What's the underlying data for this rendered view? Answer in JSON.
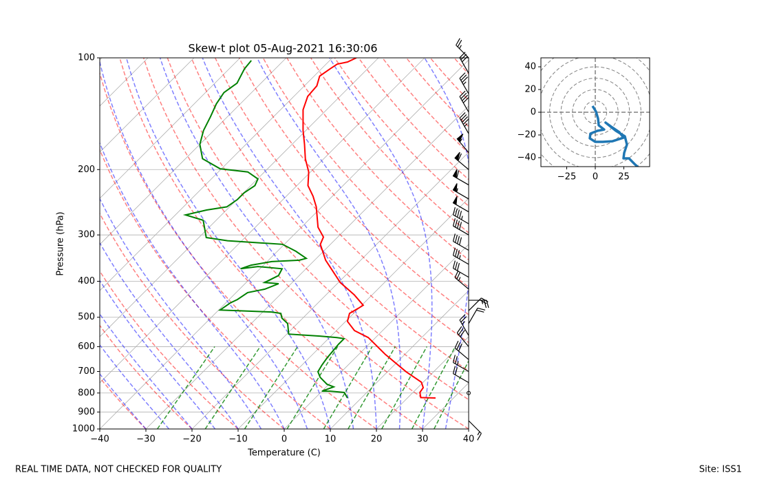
{
  "footer_left": "REAL TIME DATA, NOT CHECKED FOR QUALITY",
  "footer_right": "Site: ISS1",
  "chart_data": [
    {
      "type": "skewt",
      "title": "Skew-t plot 05-Aug-2021 16:30:06",
      "xlabel": "Temperature (C)",
      "ylabel": "Pressure (hPa)",
      "xlim": [
        -40,
        40
      ],
      "ylim": [
        1000,
        100
      ],
      "log_y": true,
      "grid": true,
      "xticks": [
        {
          "value": -40,
          "label": "−40"
        },
        {
          "value": -30,
          "label": "−30"
        },
        {
          "value": -20,
          "label": "−20"
        },
        {
          "value": -10,
          "label": "−10"
        },
        0,
        10,
        20,
        30,
        40
      ],
      "yticks": [
        1000,
        900,
        800,
        700,
        600,
        500,
        400,
        300,
        200,
        100
      ],
      "series": [
        {
          "color": "#ff0000",
          "x": [
            26.1,
            22.8,
            21.5,
            21.2,
            19.6,
            14.0,
            5.8,
            -1.6,
            -6.1,
            -9.6,
            -10.9,
            -10.1,
            -9.7,
            -13.9,
            -19.6,
            -23.3,
            -27.6,
            -32.2,
            -33.1,
            -36.4,
            -41.2,
            -44.2,
            -47.6,
            -50.4,
            -54,
            -57.3,
            -60.6,
            -65.1,
            -67,
            -67.3,
            -68.8,
            -68.1,
            -67.6,
            -65.8,
            -64.8
          ],
          "y": [
            825,
            823,
            797,
            774,
            748,
            701,
            630,
            567,
            543,
            513,
            488,
            473,
            464,
            435,
            403,
            378,
            351,
            318,
            304,
            286,
            252,
            236,
            221,
            203,
            187,
            171,
            157,
            138,
            127,
            119,
            112,
            107,
            104,
            102.6,
            100
          ]
        },
        {
          "color": "#008000",
          "x": [
            7.0,
            5.1,
            1.8,
            0.0,
            1.6,
            -0.4,
            -3.4,
            -5.1,
            -5.7,
            -6.1,
            -6.4,
            -6.6,
            -6.6,
            -8.4,
            -12.4,
            -19.6,
            -22.1,
            -24.5,
            -25.8,
            -28.1,
            -39.7,
            -39.0,
            -38.2,
            -37.5,
            -34.5,
            -32.7,
            -36.0,
            -34.5,
            -35.2,
            -40.9,
            -44.2,
            -42.7,
            -39.0,
            -33.3,
            -32.2,
            -36.0,
            -40.4,
            -53.1,
            -58.4,
            -62.8,
            -67.8,
            -64.3,
            -60.6,
            -59.9,
            -59.9,
            -59.1,
            -59.9,
            -63.6,
            -70.3,
            -76.3,
            -80,
            -82.2,
            -83.7,
            -85.2,
            -86,
            -85.2,
            -86.7,
            -87
          ],
          "y": [
            825,
            797,
            791,
            791,
            770,
            758,
            726,
            701,
            672,
            644,
            612,
            591,
            571,
            567,
            562,
            555,
            520,
            503,
            488,
            484,
            478,
            457,
            448,
            429,
            420,
            406,
            403,
            386,
            370,
            365,
            370,
            362,
            354,
            351,
            347,
            332,
            318,
            311,
            305,
            274,
            265,
            257,
            252,
            241,
            231,
            221,
            212,
            203,
            199,
            187,
            171,
            157,
            144,
            133,
            124,
            117,
            107,
            101.7
          ]
        }
      ],
      "wind": {
        "y": [
          100,
          110,
          125,
          140,
          160,
          180,
          200,
          220,
          240,
          260,
          280,
          300,
          330,
          360,
          390,
          420,
          450,
          480,
          520,
          560,
          600,
          650,
          700,
          750,
          800,
          950
        ],
        "speed": [
          25,
          30,
          35,
          40,
          45,
          55,
          60,
          60,
          55,
          50,
          45,
          40,
          40,
          35,
          30,
          25,
          25,
          20,
          20,
          25,
          30,
          30,
          25,
          20,
          0,
          15
        ],
        "direction": [
          315,
          330,
          330,
          330,
          330,
          320,
          310,
          300,
          300,
          300,
          300,
          300,
          300,
          300,
          300,
          310,
          90,
          45,
          30,
          330,
          320,
          310,
          300,
          300,
          0,
          135
        ]
      }
    },
    {
      "type": "hodograph",
      "xlim": [
        -47.6,
        47.6
      ],
      "ylim": [
        -47.9,
        47.9
      ],
      "xticks": [
        {
          "value": -25,
          "label": "−25"
        },
        0,
        25
      ],
      "yticks": [
        {
          "value": -40,
          "label": "−40"
        },
        {
          "value": -20,
          "label": "−20"
        },
        0,
        20,
        40
      ],
      "series": [
        {
          "color": "#1f77b4",
          "x": [
            -2.4,
            0.6,
            2.4,
            3.0,
            7.8,
            1.8,
            -4.2,
            -4.8,
            0,
            6.6,
            15.1,
            24.7,
            21.1,
            13.9,
            9.0,
            18.1,
            25.9,
            27.7,
            25.3,
            24.7,
            29.5,
            34.3,
            39.2
          ],
          "y": [
            5.5,
            0.6,
            -5.5,
            -11.5,
            -15.2,
            -16.4,
            -18.8,
            -23.0,
            -26.1,
            -26.1,
            -25.5,
            -22.4,
            -17.6,
            -12.7,
            -9.1,
            -16.4,
            -21.2,
            -28.5,
            -35.8,
            -40.6,
            -40.6,
            -45.5,
            -50
          ]
        }
      ]
    }
  ]
}
